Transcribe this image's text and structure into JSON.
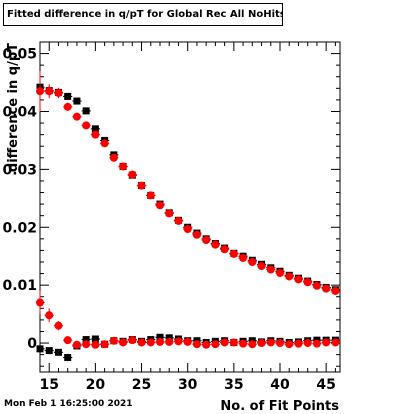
{
  "chart_data": {
    "type": "scatter",
    "title": "Fitted difference in q/pT for Global Rec All NoHits",
    "xlabel": "No. of Fit Points",
    "ylabel": "difference in q/pT",
    "xlim": [
      14,
      46.5
    ],
    "ylim": [
      -0.005,
      0.052
    ],
    "x_ticks": [
      15,
      20,
      25,
      30,
      35,
      40,
      45
    ],
    "x_tick_labels": [
      "15",
      "20",
      "25",
      "30",
      "35",
      "40",
      "45"
    ],
    "y_ticks": [
      0,
      0.01,
      0.02,
      0.03,
      0.04,
      0.05
    ],
    "y_tick_labels": [
      "0",
      "0.01",
      "0.02",
      "0.03",
      "0.04",
      "0.05"
    ],
    "grid": false,
    "x": [
      14,
      15,
      16,
      17,
      18,
      19,
      20,
      21,
      22,
      23,
      24,
      25,
      26,
      27,
      28,
      29,
      30,
      31,
      32,
      33,
      34,
      35,
      36,
      37,
      38,
      39,
      40,
      41,
      42,
      43,
      44,
      45,
      46
    ],
    "series": [
      {
        "color": "#000000",
        "values": [
          0.0442,
          0.0436,
          0.0433,
          0.0426,
          0.0418,
          0.0401,
          0.037,
          0.035,
          0.0325,
          0.0305,
          0.029,
          0.0272,
          0.0255,
          0.024,
          0.0225,
          0.0212,
          0.02,
          0.019,
          0.018,
          0.0172,
          0.0164,
          0.0155,
          0.015,
          0.0143,
          0.0136,
          0.013,
          0.0124,
          0.0117,
          0.0112,
          0.0107,
          0.0101,
          0.0096,
          0.0092
        ],
        "errors": [
          0.001,
          0.0008,
          0.0007,
          0.0006,
          0.0005,
          0.0004,
          0.0004,
          0.0003,
          0.0003,
          0.0003,
          0.0002,
          0.0002,
          0.0002,
          0.0002,
          0.0002,
          0.0002,
          0.0002,
          0.0002,
          0.0002,
          0.0002,
          0.0002,
          0.0002,
          0.0002,
          0.0002,
          0.0002,
          0.0002,
          0.0002,
          0.0002,
          0.0002,
          0.0002,
          0.0002,
          0.0002,
          0.0002
        ]
      },
      {
        "color": "#ff0000",
        "values": [
          0.0435,
          0.0435,
          0.0432,
          0.0408,
          0.0391,
          0.0376,
          0.036,
          0.0345,
          0.032,
          0.0305,
          0.0291,
          0.0272,
          0.0255,
          0.0238,
          0.0224,
          0.0211,
          0.0197,
          0.0187,
          0.0178,
          0.017,
          0.0162,
          0.0154,
          0.0147,
          0.014,
          0.0133,
          0.0127,
          0.0121,
          0.0115,
          0.011,
          0.0105,
          0.0099,
          0.0094,
          0.009
        ],
        "errors": [
          0.0035,
          0.0012,
          0.0009,
          0.0007,
          0.0005,
          0.0004,
          0.0004,
          0.0003,
          0.0003,
          0.0003,
          0.0002,
          0.0002,
          0.0002,
          0.0002,
          0.0002,
          0.0002,
          0.0002,
          0.0002,
          0.0002,
          0.0002,
          0.0002,
          0.0002,
          0.0002,
          0.0002,
          0.0002,
          0.0002,
          0.0002,
          0.0002,
          0.0002,
          0.0002,
          0.0002,
          0.0002,
          0.0002
        ]
      },
      {
        "color": "#000000",
        "values": [
          -0.001,
          -0.0013,
          -0.0016,
          -0.0025,
          -0.0005,
          0.0006,
          0.0007,
          -0.0002,
          0.0004,
          0.0003,
          0.0006,
          0.0003,
          0.0006,
          0.001,
          0.0009,
          0.0007,
          0.0004,
          0.0004,
          0.0001,
          0.0003,
          0.0004,
          0.0001,
          0.0003,
          0.0004,
          0.0002,
          0.0004,
          0.0003,
          0.0001,
          0.0002,
          0.0004,
          0.0005,
          0.0005,
          0.0005
        ],
        "errors": [
          0.0006,
          0.0005,
          0.0005,
          0.0005,
          0.0004,
          0.0003,
          0.0003,
          0.0002,
          0.0002,
          0.0002,
          0.0002,
          0.0002,
          0.0002,
          0.0002,
          0.0002,
          0.0002,
          0.0002,
          0.0002,
          0.0002,
          0.0002,
          0.0002,
          0.0002,
          0.0002,
          0.0002,
          0.0002,
          0.0002,
          0.0002,
          0.0002,
          0.0002,
          0.0002,
          0.0002,
          0.0002,
          0.0002
        ]
      },
      {
        "color": "#ff0000",
        "values": [
          0.007,
          0.0048,
          0.003,
          0.0005,
          -0.0003,
          -0.0002,
          -0.0003,
          -0.0002,
          0.0004,
          0.0001,
          0.0005,
          0.0001,
          0.0001,
          0.0002,
          0.0002,
          0.0003,
          0.0002,
          -0.0002,
          -0.0003,
          -0.0002,
          0.0001,
          0.0001,
          -0.0001,
          -0.0002,
          0.0,
          0.0001,
          0.0,
          -0.0002,
          -0.0001,
          0.0,
          -0.0001,
          0.0001,
          0.0001
        ],
        "errors": [
          0.002,
          0.0012,
          0.0008,
          0.0006,
          0.0004,
          0.0003,
          0.0003,
          0.0003,
          0.0002,
          0.0002,
          0.0002,
          0.0002,
          0.0002,
          0.0002,
          0.0002,
          0.0002,
          0.0002,
          0.0002,
          0.0002,
          0.0002,
          0.0002,
          0.0002,
          0.0002,
          0.0002,
          0.0002,
          0.0002,
          0.0002,
          0.0002,
          0.0002,
          0.0002,
          0.0002,
          0.0002,
          0.0002
        ]
      }
    ]
  },
  "timestamp": "Mon Feb  1 16:25:00 2021"
}
